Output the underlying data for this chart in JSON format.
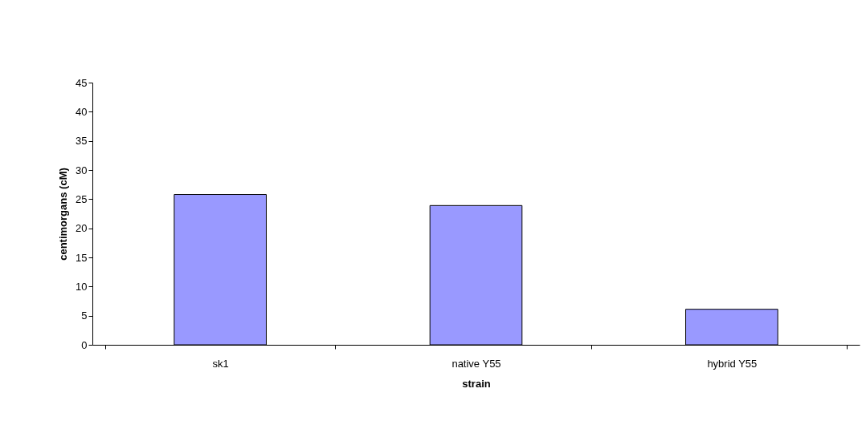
{
  "chart_data": {
    "type": "bar",
    "xlabel": "strain",
    "ylabel": "centimorgans (cM)",
    "categories": [
      "sk1",
      "native Y55",
      "hybrid Y55"
    ],
    "values": [
      25.8,
      23.9,
      6.1
    ],
    "color": "#9999ff",
    "ylim": [
      0,
      45
    ],
    "yticks": [
      0,
      5,
      10,
      15,
      20,
      25,
      30,
      35,
      40,
      45
    ],
    "grid": false
  }
}
